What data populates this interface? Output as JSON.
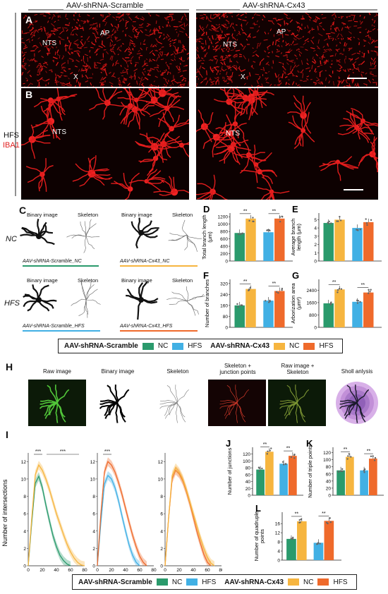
{
  "header": {
    "group_left": "AAV-shRNA-Scramble",
    "group_right": "AAV-shRNA-Cx43"
  },
  "side": {
    "hfs": "HFS",
    "iba1": "IBA1"
  },
  "panels": {
    "A": "A",
    "B": "B",
    "C": "C",
    "D": "D",
    "E": "E",
    "F": "F",
    "G": "G",
    "H": "H",
    "I": "I",
    "J": "J",
    "K": "K",
    "L": "L"
  },
  "regions": {
    "nts": "NTS",
    "ap": "AP",
    "x": "X"
  },
  "colors": {
    "nc_scr": "#2a9a6c",
    "hfs_scr": "#41b0e4",
    "nc_cx": "#f6b53f",
    "hfs_cx": "#ef6a2b",
    "iba1": "#e02020",
    "green": "#3aa845"
  },
  "panelC": {
    "binary": "Binary image",
    "skeleton": "Skeleton",
    "nc": "NC",
    "hfs": "HFS",
    "captions": [
      "AAV-shRNA-Scramble_NC",
      "AAV-shRNA-Cx43_NC",
      "AAV-shRNA-Scramble_HFS",
      "AAV-shRNA-Cx43_HFS"
    ]
  },
  "legend": {
    "group1": "AAV-shRNA-Scramble",
    "group2": "AAV-shRNA-Cx43",
    "nc": "NC",
    "hfs": "HFS"
  },
  "panelH": {
    "labels": [
      "Raw image",
      "Binary image",
      "Skeleton",
      "Skeleton +\njunction points",
      "Raw image +\nSkeleton",
      "Sholl anlysis"
    ]
  },
  "chart_data": [
    {
      "panel": "D",
      "type": "bar",
      "ylabel": "Total branch length\n(μm)",
      "yticks": [
        0,
        200,
        400,
        600,
        800,
        1000,
        1200
      ],
      "ylim": [
        0,
        1300
      ],
      "series": [
        {
          "name": "AAV-shRNA-Scramble NC",
          "values": [
            760
          ]
        },
        {
          "name": "AAV-shRNA-Cx43 NC",
          "values": [
            1150
          ]
        },
        {
          "name": "AAV-shRNA-Scramble HFS",
          "values": [
            780
          ]
        },
        {
          "name": "AAV-shRNA-Cx43 HFS",
          "values": [
            1150
          ]
        }
      ],
      "sig": [
        "**",
        "**"
      ]
    },
    {
      "panel": "E",
      "type": "bar",
      "ylabel": "Average branch\nlength (μm)",
      "yticks": [
        0,
        1,
        2,
        3,
        4,
        5
      ],
      "ylim": [
        0,
        5.8
      ],
      "series": [
        {
          "name": "AAV-shRNA-Scramble NC",
          "values": [
            4.6
          ]
        },
        {
          "name": "AAV-shRNA-Cx43 NC",
          "values": [
            5.0
          ]
        },
        {
          "name": "AAV-shRNA-Scramble HFS",
          "values": [
            4.0
          ]
        },
        {
          "name": "AAV-shRNA-Cx43 HFS",
          "values": [
            4.7
          ]
        }
      ],
      "sig": []
    },
    {
      "panel": "F",
      "type": "bar",
      "ylabel": "Number of branches",
      "yticks": [
        0,
        80,
        160,
        240,
        320
      ],
      "ylim": [
        0,
        350
      ],
      "series": [
        {
          "name": "AAV-shRNA-Scramble NC",
          "values": [
            160
          ]
        },
        {
          "name": "AAV-shRNA-Cx43 NC",
          "values": [
            280
          ]
        },
        {
          "name": "AAV-shRNA-Scramble HFS",
          "values": [
            195
          ]
        },
        {
          "name": "AAV-shRNA-Cx43 HFS",
          "values": [
            265
          ]
        }
      ],
      "sig": [
        "**",
        "**"
      ]
    },
    {
      "panel": "G",
      "type": "bar",
      "ylabel": "Arborization area\n(μm²)",
      "yticks": [
        0,
        800,
        1600,
        2400
      ],
      "ylim": [
        0,
        3100
      ],
      "series": [
        {
          "name": "AAV-shRNA-Scramble NC",
          "values": [
            1550
          ]
        },
        {
          "name": "AAV-shRNA-Cx43 NC",
          "values": [
            2450
          ]
        },
        {
          "name": "AAV-shRNA-Scramble HFS",
          "values": [
            1650
          ]
        },
        {
          "name": "AAV-shRNA-Cx43 HFS",
          "values": [
            2250
          ]
        }
      ],
      "sig": [
        "**",
        "**"
      ]
    },
    {
      "panel": "I",
      "type": "line",
      "ylabel": "Number of intersections",
      "xlabel": "Distance from soma (μm)",
      "xticks": [
        0,
        20,
        40,
        60,
        80
      ],
      "yticks": [
        0,
        2,
        4,
        6,
        8,
        10,
        12
      ],
      "xlim": [
        0,
        80
      ],
      "ylim": [
        0,
        13
      ],
      "subplots": [
        {
          "series": [
            {
              "name": "AAV-shRNA-Scramble NC",
              "x": [
                0,
                5,
                10,
                15,
                20,
                25,
                30,
                35,
                40,
                45,
                50,
                55,
                60
              ],
              "y": [
                0,
                5,
                9.5,
                10.3,
                9,
                7,
                5.2,
                3.5,
                2.2,
                1.2,
                0.6,
                0.2,
                0
              ]
            },
            {
              "name": "AAV-shRNA-Cx43 NC",
              "x": [
                0,
                5,
                10,
                15,
                20,
                25,
                30,
                35,
                40,
                45,
                50,
                55,
                60,
                65,
                70,
                75,
                80
              ],
              "y": [
                0,
                5.5,
                10.5,
                11.6,
                11,
                10,
                8.8,
                7.4,
                6,
                4.8,
                3.6,
                2.5,
                1.6,
                0.9,
                0.4,
                0.1,
                0
              ]
            }
          ],
          "sig": [
            "***",
            "***"
          ]
        },
        {
          "series": [
            {
              "name": "AAV-shRNA-Scramble HFS",
              "x": [
                0,
                5,
                10,
                15,
                20,
                25,
                30,
                35,
                40,
                45,
                50,
                55,
                60
              ],
              "y": [
                0,
                5,
                9.4,
                10.4,
                10,
                9,
                7.5,
                5.7,
                4,
                2.4,
                1.2,
                0.4,
                0
              ]
            },
            {
              "name": "AAV-shRNA-Cx43 HFS",
              "x": [
                0,
                5,
                10,
                15,
                20,
                25,
                30,
                35,
                40,
                45,
                50,
                55,
                60,
                65,
                70
              ],
              "y": [
                0,
                6,
                10.8,
                12,
                11.6,
                10.8,
                9.6,
                8.2,
                6.6,
                5,
                3.5,
                2.2,
                1.1,
                0.4,
                0
              ]
            }
          ],
          "sig": [
            "***"
          ]
        },
        {
          "series": [
            {
              "name": "AAV-shRNA-Cx43 HFS",
              "x": [
                0,
                5,
                10,
                15,
                20,
                25,
                30,
                35,
                40,
                45,
                50,
                55,
                60,
                65
              ],
              "y": [
                0,
                5.5,
                10,
                11,
                10.6,
                9.8,
                8.6,
                7.2,
                5.6,
                4,
                2.6,
                1.3,
                0.4,
                0
              ]
            },
            {
              "name": "AAV-shRNA-Cx43 NC",
              "x": [
                0,
                5,
                10,
                15,
                20,
                25,
                30,
                35,
                40,
                45,
                50,
                55,
                60,
                65,
                70
              ],
              "y": [
                0,
                5.5,
                10.4,
                11.3,
                10.8,
                10,
                8.8,
                7.4,
                6,
                4.6,
                3.2,
                2,
                1,
                0.3,
                0
              ]
            }
          ],
          "sig": []
        }
      ]
    },
    {
      "panel": "J",
      "type": "bar",
      "ylabel": "Number of junctions",
      "yticks": [
        0,
        20,
        40,
        60,
        80,
        100,
        120
      ],
      "ylim": [
        0,
        140
      ],
      "series": [
        {
          "name": "AAV-shRNA-Scramble NC",
          "values": [
            75
          ]
        },
        {
          "name": "AAV-shRNA-Cx43 NC",
          "values": [
            127
          ]
        },
        {
          "name": "AAV-shRNA-Scramble HFS",
          "values": [
            92
          ]
        },
        {
          "name": "AAV-shRNA-Cx43 HFS",
          "values": [
            115
          ]
        }
      ],
      "sig": [
        "**",
        "**"
      ]
    },
    {
      "panel": "K",
      "type": "bar",
      "ylabel": "Number of triple points",
      "yticks": [
        0,
        20,
        40,
        60,
        80,
        100,
        120
      ],
      "ylim": [
        0,
        135
      ],
      "series": [
        {
          "name": "AAV-shRNA-Scramble NC",
          "values": [
            70
          ]
        },
        {
          "name": "AAV-shRNA-Cx43 NC",
          "values": [
            108
          ]
        },
        {
          "name": "AAV-shRNA-Scramble HFS",
          "values": [
            70
          ]
        },
        {
          "name": "AAV-shRNA-Cx43 HFS",
          "values": [
            103
          ]
        }
      ],
      "sig": [
        "**",
        "**"
      ]
    },
    {
      "panel": "L",
      "type": "bar",
      "ylabel": "Number of quadruple\npoints",
      "yticks": [
        0,
        4,
        8,
        12,
        16
      ],
      "ylim": [
        0,
        21
      ],
      "series": [
        {
          "name": "AAV-shRNA-Scramble NC",
          "values": [
            9.3
          ]
        },
        {
          "name": "AAV-shRNA-Cx43 NC",
          "values": [
            17
          ]
        },
        {
          "name": "AAV-shRNA-Scramble HFS",
          "values": [
            7.6
          ]
        },
        {
          "name": "AAV-shRNA-Cx43 HFS",
          "values": [
            17.2
          ]
        }
      ],
      "sig": [
        "**",
        "**"
      ]
    }
  ]
}
